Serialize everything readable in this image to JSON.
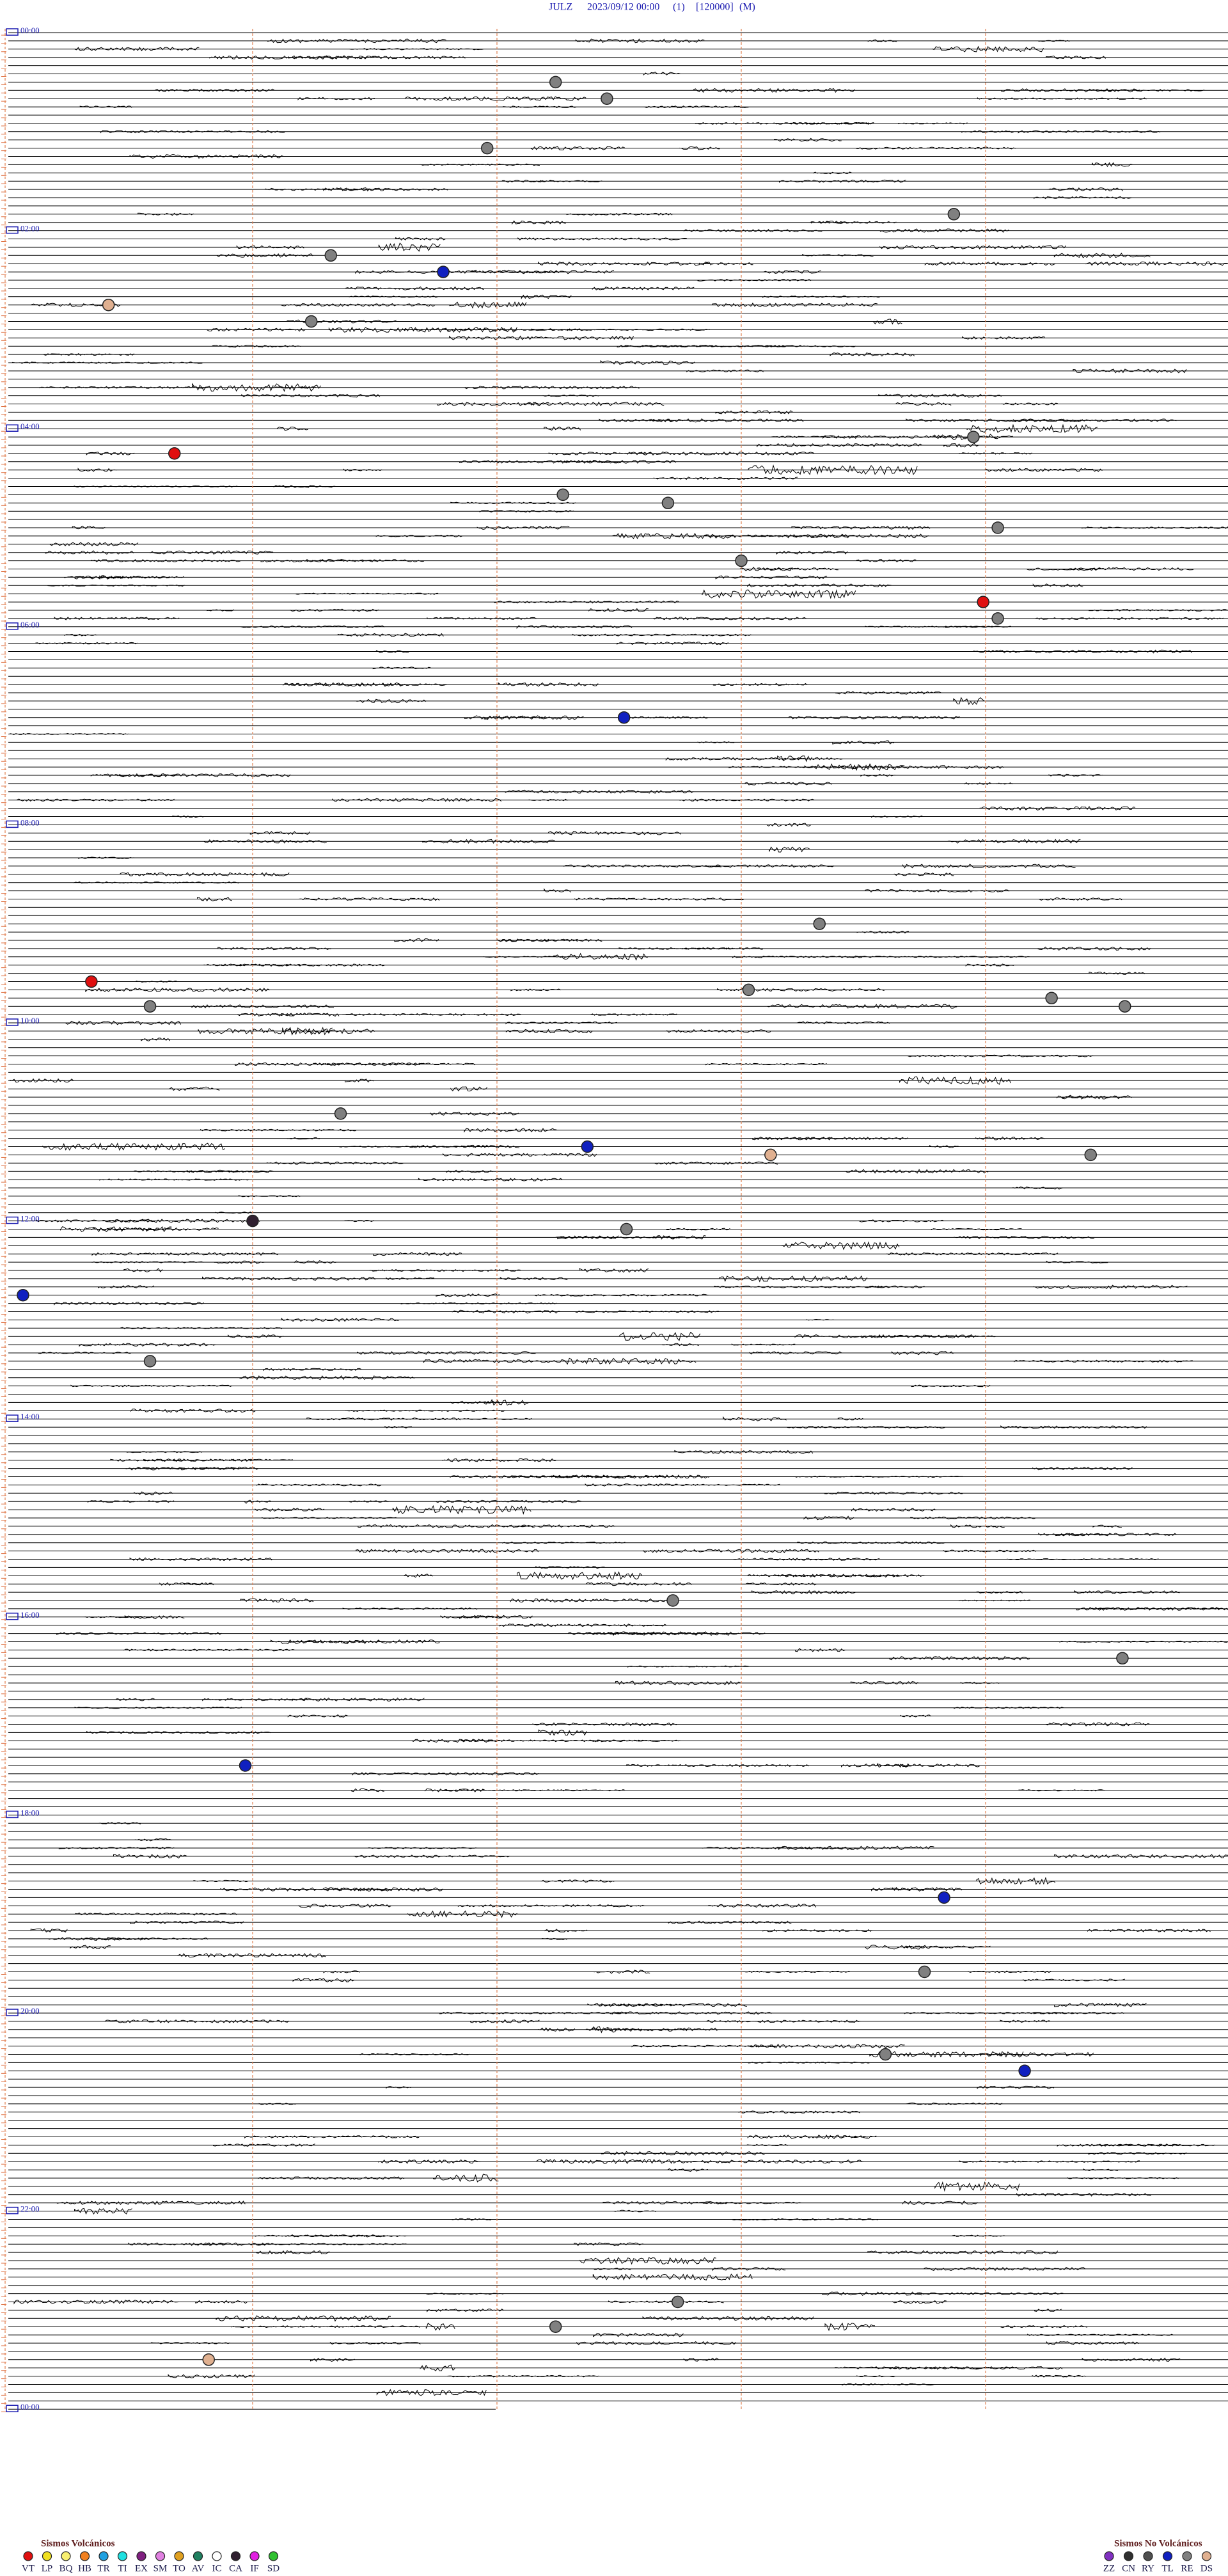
{
  "header": {
    "station": "JULZ",
    "datetime": "2023/09/12 00:00",
    "channel": "(1)",
    "scale": "[120000]",
    "unit": "(M)"
  },
  "hour_labels": [
    "00:00",
    "02:00",
    "04:00",
    "06:00",
    "08:00",
    "10:00",
    "12:00",
    "14:00",
    "16:00",
    "18:00",
    "20:00",
    "22:00",
    "00:00"
  ],
  "legend_volcanic": {
    "title": "Sismos Volcánicos",
    "items": [
      {
        "code": "VT",
        "color": "#e01010"
      },
      {
        "code": "LP",
        "color": "#f0e020"
      },
      {
        "code": "BQ",
        "color": "#f8f070"
      },
      {
        "code": "HB",
        "color": "#f08020"
      },
      {
        "code": "TR",
        "color": "#20a0e0"
      },
      {
        "code": "TI",
        "color": "#20e0e0"
      },
      {
        "code": "EX",
        "color": "#802080"
      },
      {
        "code": "SM",
        "color": "#e080e0"
      },
      {
        "code": "TO",
        "color": "#e0a020"
      },
      {
        "code": "AV",
        "color": "#208060"
      },
      {
        "code": "IC",
        "color": "#ffffff"
      },
      {
        "code": "CA",
        "color": "#302030"
      },
      {
        "code": "IF",
        "color": "#e020e0"
      },
      {
        "code": "SD",
        "color": "#30c030"
      }
    ]
  },
  "legend_nonvolcanic": {
    "title": "Sismos No Volcánicos",
    "items": [
      {
        "code": "ZZ",
        "color": "#8030c0"
      },
      {
        "code": "CN",
        "color": "#303030"
      },
      {
        "code": "RY",
        "color": "#505050"
      },
      {
        "code": "TL",
        "color": "#1020c0"
      },
      {
        "code": "RE",
        "color": "#808080"
      },
      {
        "code": "DS",
        "color": "#e0b090"
      }
    ]
  },
  "events": [
    {
      "code": "RE",
      "row": 6,
      "minute": 2.24
    },
    {
      "code": "RE",
      "row": 8,
      "minute": 2.45
    },
    {
      "code": "RE",
      "row": 14,
      "minute": 1.96
    },
    {
      "code": "RE",
      "row": 22,
      "minute": 3.87
    },
    {
      "code": "RE",
      "row": 27,
      "minute": 1.32
    },
    {
      "code": "TL",
      "row": 29,
      "minute": 1.78
    },
    {
      "code": "DS",
      "row": 33,
      "minute": 0.41
    },
    {
      "code": "RE",
      "row": 35,
      "minute": 1.24
    },
    {
      "code": "RE",
      "row": 49,
      "minute": 3.95
    },
    {
      "code": "VT",
      "row": 51,
      "minute": 0.68
    },
    {
      "code": "RE",
      "row": 56,
      "minute": 2.27
    },
    {
      "code": "RE",
      "row": 57,
      "minute": 2.7
    },
    {
      "code": "RE",
      "row": 60,
      "minute": 4.05
    },
    {
      "code": "RE",
      "row": 64,
      "minute": 3.0
    },
    {
      "code": "VT",
      "row": 69,
      "minute": 3.99
    },
    {
      "code": "RE",
      "row": 71,
      "minute": 4.05
    },
    {
      "code": "TL",
      "row": 83,
      "minute": 2.52
    },
    {
      "code": "RE",
      "row": 108,
      "minute": 3.32
    },
    {
      "code": "VT",
      "row": 115,
      "minute": 0.34
    },
    {
      "code": "RE",
      "row": 116,
      "minute": 3.03
    },
    {
      "code": "RE",
      "row": 118,
      "minute": 0.58
    },
    {
      "code": "RE",
      "row": 117,
      "minute": 4.27
    },
    {
      "code": "RE",
      "row": 118,
      "minute": 4.57
    },
    {
      "code": "RE",
      "row": 131,
      "minute": 1.36
    },
    {
      "code": "TL",
      "row": 135,
      "minute": 2.37
    },
    {
      "code": "DS",
      "row": 136,
      "minute": 3.12
    },
    {
      "code": "RE",
      "row": 136,
      "minute": 4.43
    },
    {
      "code": "CA",
      "row": 144,
      "minute": 1.0
    },
    {
      "code": "RE",
      "row": 145,
      "minute": 2.53
    },
    {
      "code": "TL",
      "row": 153,
      "minute": 0.06
    },
    {
      "code": "RE",
      "row": 161,
      "minute": 0.58
    },
    {
      "code": "RE",
      "row": 190,
      "minute": 2.72
    },
    {
      "code": "RE",
      "row": 197,
      "minute": 4.56
    },
    {
      "code": "TL",
      "row": 210,
      "minute": 0.97
    },
    {
      "code": "TL",
      "row": 226,
      "minute": 3.83
    },
    {
      "code": "RE",
      "row": 235,
      "minute": 3.75
    },
    {
      "code": "RE",
      "row": 245,
      "minute": 3.59
    },
    {
      "code": "TL",
      "row": 247,
      "minute": 4.16
    },
    {
      "code": "RE",
      "row": 275,
      "minute": 2.74
    },
    {
      "code": "RE",
      "row": 278,
      "minute": 2.24
    },
    {
      "code": "DS",
      "row": 282,
      "minute": 0.82
    }
  ]
}
